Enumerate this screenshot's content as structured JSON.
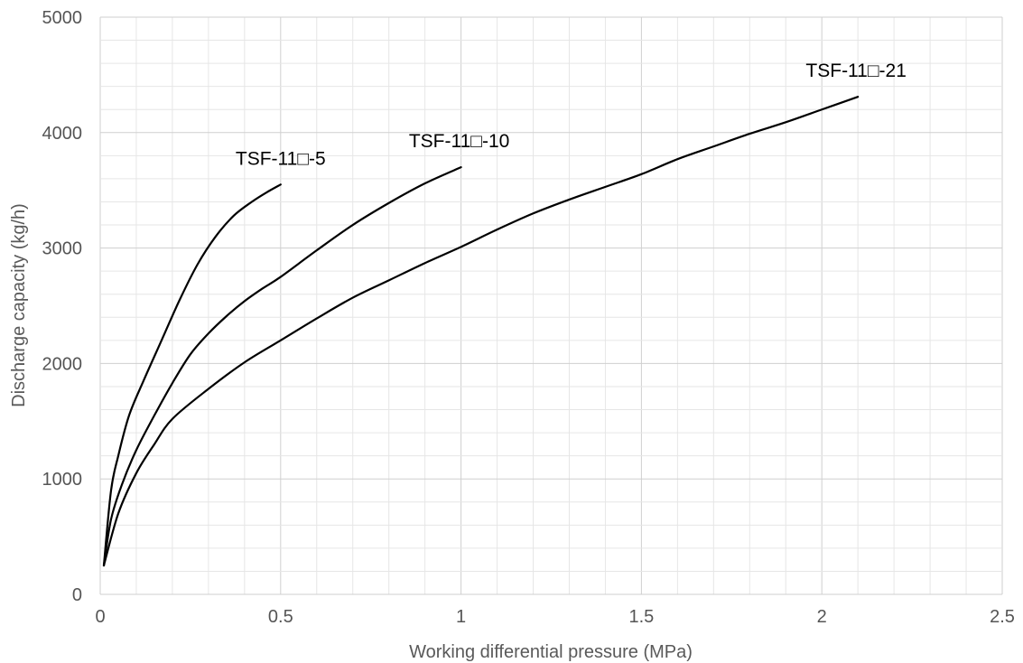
{
  "chart_data": {
    "type": "line",
    "title": "",
    "xlabel": "Working differential pressure (MPa)",
    "ylabel": "Discharge capacity (kg/h)",
    "xlim": [
      0,
      2.5
    ],
    "ylim": [
      0,
      5000
    ],
    "x_ticks": [
      0,
      0.5,
      1,
      1.5,
      2,
      2.5
    ],
    "x_tick_labels": [
      "0",
      "0.5",
      "1",
      "1.5",
      "2",
      "2.5"
    ],
    "y_ticks": [
      0,
      1000,
      2000,
      3000,
      4000,
      5000
    ],
    "y_tick_labels": [
      "0",
      "1000",
      "2000",
      "3000",
      "4000",
      "5000"
    ],
    "grid": true,
    "legend": "none",
    "series": [
      {
        "name": "TSF-11□-5",
        "x": [
          0.01,
          0.03,
          0.05,
          0.08,
          0.12,
          0.17,
          0.22,
          0.27,
          0.32,
          0.37,
          0.42,
          0.46,
          0.5
        ],
        "y": [
          250,
          900,
          1200,
          1550,
          1850,
          2200,
          2550,
          2860,
          3100,
          3280,
          3400,
          3480,
          3550
        ]
      },
      {
        "name": "TSF-11□-10",
        "x": [
          0.01,
          0.03,
          0.06,
          0.1,
          0.15,
          0.2,
          0.25,
          0.3,
          0.35,
          0.4,
          0.45,
          0.5,
          0.6,
          0.7,
          0.8,
          0.9,
          1.0
        ],
        "y": [
          250,
          650,
          950,
          1250,
          1550,
          1830,
          2080,
          2260,
          2410,
          2540,
          2650,
          2750,
          2980,
          3200,
          3390,
          3560,
          3700
        ]
      },
      {
        "name": "TSF-11□-21",
        "x": [
          0.01,
          0.05,
          0.1,
          0.15,
          0.2,
          0.3,
          0.4,
          0.5,
          0.6,
          0.7,
          0.8,
          0.9,
          1.0,
          1.1,
          1.2,
          1.3,
          1.4,
          1.5,
          1.6,
          1.7,
          1.8,
          1.9,
          2.0,
          2.1
        ],
        "y": [
          250,
          700,
          1050,
          1300,
          1520,
          1780,
          2010,
          2200,
          2390,
          2570,
          2720,
          2870,
          3010,
          3160,
          3300,
          3420,
          3530,
          3640,
          3770,
          3880,
          3990,
          4090,
          4200,
          4310
        ]
      }
    ]
  }
}
